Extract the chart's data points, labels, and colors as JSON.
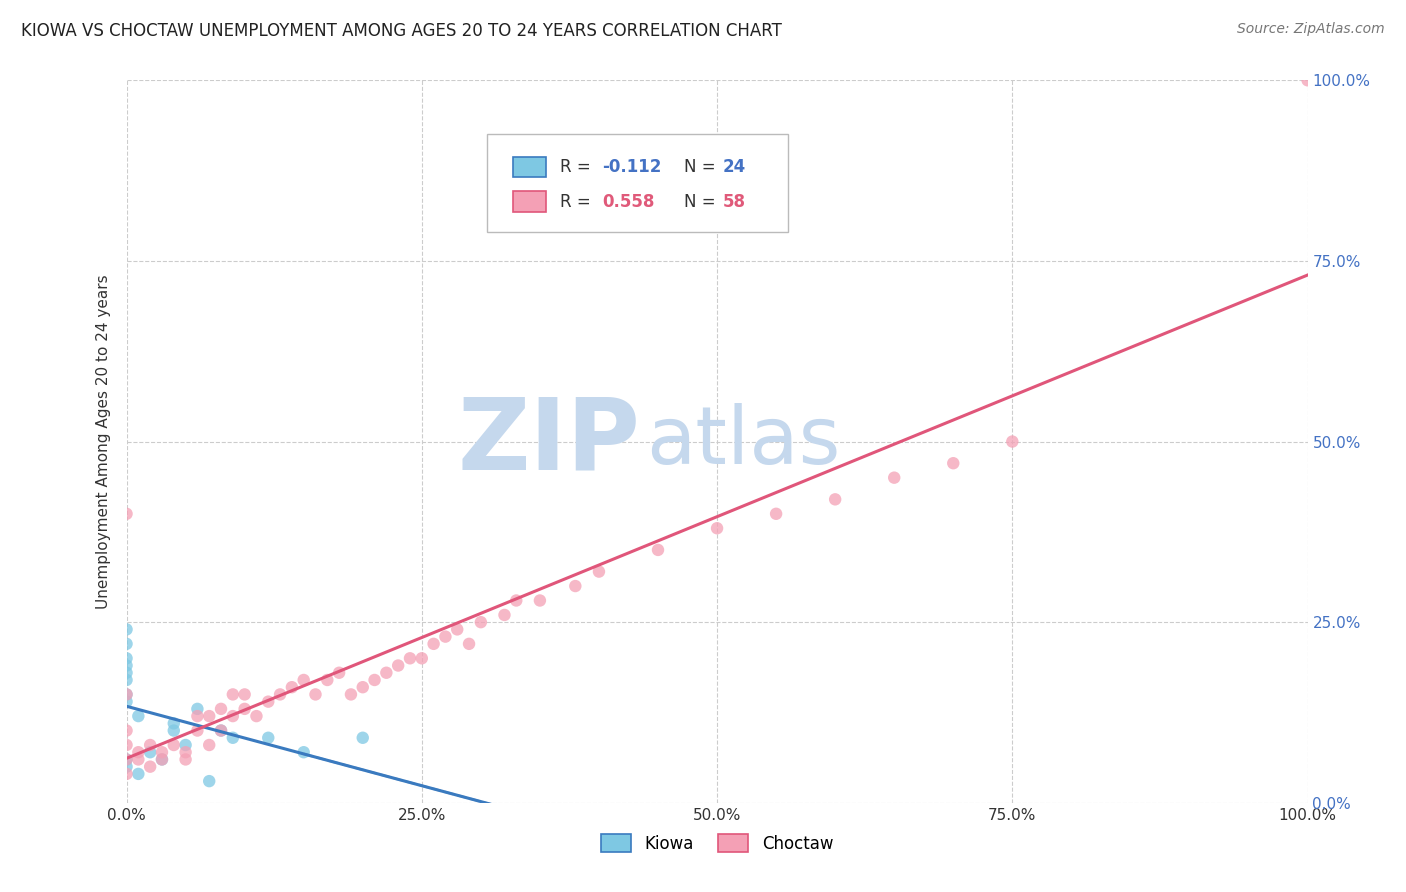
{
  "title": "KIOWA VS CHOCTAW UNEMPLOYMENT AMONG AGES 20 TO 24 YEARS CORRELATION CHART",
  "source": "Source: ZipAtlas.com",
  "ylabel": "Unemployment Among Ages 20 to 24 years",
  "kiowa_R": -0.112,
  "kiowa_N": 24,
  "choctaw_R": 0.558,
  "choctaw_N": 58,
  "kiowa_color": "#7ec8e3",
  "choctaw_color": "#f4a0b5",
  "kiowa_line_color": "#3a7abf",
  "choctaw_line_color": "#e0567a",
  "kiowa_line_style": "solid",
  "choctaw_line_style": "solid",
  "watermark_zip_color": "#c5d8ed",
  "watermark_atlas_color": "#c5d8ed",
  "xlim": [
    0,
    1.0
  ],
  "ylim": [
    0,
    1.0
  ],
  "tick_values": [
    0,
    0.25,
    0.5,
    0.75,
    1.0
  ],
  "tick_labels": [
    "0.0%",
    "25.0%",
    "50.0%",
    "75.0%",
    "100.0%"
  ],
  "right_tick_color": "#4472c4",
  "kiowa_x": [
    0.0,
    0.0,
    0.0,
    0.0,
    0.0,
    0.0,
    0.0,
    0.0,
    0.0,
    0.0,
    0.01,
    0.01,
    0.02,
    0.03,
    0.04,
    0.04,
    0.05,
    0.06,
    0.07,
    0.08,
    0.09,
    0.12,
    0.15,
    0.2
  ],
  "kiowa_y": [
    0.2,
    0.22,
    0.17,
    0.15,
    0.14,
    0.19,
    0.24,
    0.18,
    0.06,
    0.05,
    0.12,
    0.04,
    0.07,
    0.06,
    0.1,
    0.11,
    0.08,
    0.13,
    0.03,
    0.1,
    0.09,
    0.09,
    0.07,
    0.09
  ],
  "choctaw_x": [
    0.0,
    0.0,
    0.0,
    0.0,
    0.0,
    0.0,
    0.01,
    0.01,
    0.02,
    0.02,
    0.03,
    0.03,
    0.04,
    0.05,
    0.05,
    0.06,
    0.06,
    0.07,
    0.07,
    0.08,
    0.08,
    0.09,
    0.09,
    0.1,
    0.1,
    0.11,
    0.12,
    0.13,
    0.14,
    0.15,
    0.16,
    0.17,
    0.18,
    0.19,
    0.2,
    0.21,
    0.22,
    0.23,
    0.24,
    0.25,
    0.26,
    0.27,
    0.28,
    0.29,
    0.3,
    0.32,
    0.33,
    0.35,
    0.38,
    0.4,
    0.45,
    0.5,
    0.55,
    0.6,
    0.65,
    0.7,
    0.75,
    1.0
  ],
  "choctaw_y": [
    0.04,
    0.06,
    0.08,
    0.1,
    0.15,
    0.4,
    0.06,
    0.07,
    0.05,
    0.08,
    0.06,
    0.07,
    0.08,
    0.06,
    0.07,
    0.1,
    0.12,
    0.08,
    0.12,
    0.1,
    0.13,
    0.12,
    0.15,
    0.13,
    0.15,
    0.12,
    0.14,
    0.15,
    0.16,
    0.17,
    0.15,
    0.17,
    0.18,
    0.15,
    0.16,
    0.17,
    0.18,
    0.19,
    0.2,
    0.2,
    0.22,
    0.23,
    0.24,
    0.22,
    0.25,
    0.26,
    0.28,
    0.28,
    0.3,
    0.32,
    0.35,
    0.38,
    0.4,
    0.42,
    0.45,
    0.47,
    0.5,
    1.0
  ],
  "kiowa_trend_x": [
    0.0,
    1.0
  ],
  "choctaw_trend_x": [
    0.0,
    1.0
  ],
  "legend_R_kiowa": "R = -0.112",
  "legend_N_kiowa": "N = 24",
  "legend_R_choctaw": "R = 0.558",
  "legend_N_choctaw": "N = 58"
}
